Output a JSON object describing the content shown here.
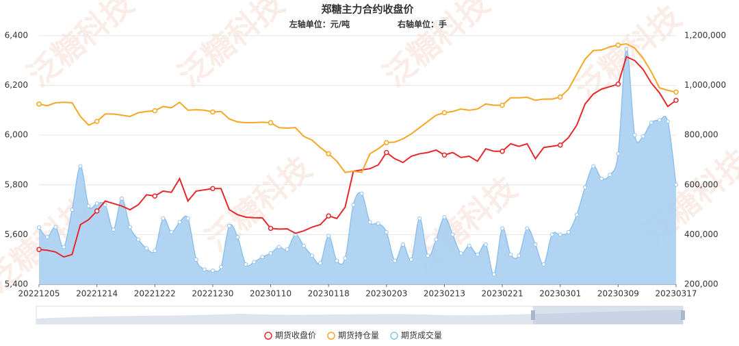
{
  "chart_data": {
    "type": "line",
    "title": "郑糖主力合约收盘价",
    "subtitle_left": "左轴单位：元/吨",
    "subtitle_right": "右轴单位：手",
    "watermark": "泛糖科技",
    "categories": [
      "20221205",
      null,
      null,
      null,
      null,
      null,
      null,
      "20221214",
      null,
      null,
      null,
      null,
      null,
      null,
      "20221222",
      null,
      null,
      null,
      null,
      null,
      null,
      "20221230",
      null,
      null,
      null,
      null,
      null,
      null,
      "20230110",
      null,
      null,
      null,
      null,
      null,
      null,
      "20230118",
      null,
      null,
      null,
      null,
      null,
      null,
      "20230203",
      null,
      null,
      null,
      null,
      null,
      null,
      "20230213",
      null,
      null,
      null,
      null,
      null,
      null,
      "20230221",
      null,
      null,
      null,
      null,
      null,
      null,
      "20230301",
      null,
      null,
      null,
      null,
      null,
      null,
      "20230309",
      null,
      null,
      null,
      null,
      null,
      null,
      "20230317"
    ],
    "ylim": [
      5400,
      6400
    ],
    "yticks": [
      {
        "value": 5400,
        "label": "5,400"
      },
      {
        "value": 5600,
        "label": "5,600"
      },
      {
        "value": 5800,
        "label": "5,800"
      },
      {
        "value": 6000,
        "label": "6,000"
      },
      {
        "value": 6200,
        "label": "6,200"
      },
      {
        "value": 6400,
        "label": "6,400"
      }
    ],
    "y2lim": [
      200000,
      1200000
    ],
    "y2ticks": [
      {
        "value": 200000,
        "label": "200,000"
      },
      {
        "value": 400000,
        "label": "400,000"
      },
      {
        "value": 600000,
        "label": "600,000"
      },
      {
        "value": 800000,
        "label": "800,000"
      },
      {
        "value": 1000000,
        "label": "1,000,000"
      },
      {
        "value": 1200000,
        "label": "1,200,000"
      }
    ],
    "grid": true,
    "legend": "bottom",
    "series": [
      {
        "name": "期货收盘价",
        "color": "#e8262a",
        "values": [
          5540,
          5537,
          5530,
          5510,
          5520,
          5640,
          5660,
          5695,
          5735,
          5725,
          5715,
          5700,
          5720,
          5760,
          5755,
          5775,
          5770,
          5825,
          5735,
          5775,
          5780,
          5785,
          5785,
          5700,
          5680,
          5670,
          5668,
          5667,
          5625,
          5622,
          5623,
          5605,
          5615,
          5630,
          5640,
          5675,
          5665,
          5710,
          5855,
          5860,
          5865,
          5880,
          5930,
          5905,
          5890,
          5915,
          5925,
          5930,
          5940,
          5920,
          5930,
          5910,
          5915,
          5895,
          5945,
          5935,
          5935,
          5965,
          5955,
          5965,
          5905,
          5950,
          5955,
          5960,
          5990,
          6040,
          6125,
          6165,
          6185,
          6195,
          6205,
          6315,
          6300,
          6265,
          6210,
          6170,
          6115,
          6140
        ]
      },
      {
        "name": "期货持仓量",
        "color": "#f5a623",
        "axis": "y2",
        "values": [
          925000,
          918000,
          930000,
          932000,
          930000,
          875000,
          840000,
          855000,
          885000,
          885000,
          880000,
          875000,
          890000,
          895000,
          898000,
          915000,
          910000,
          932000,
          900000,
          902000,
          900000,
          893000,
          895000,
          865000,
          853000,
          850000,
          850000,
          852000,
          850000,
          830000,
          828000,
          830000,
          795000,
          780000,
          750000,
          725000,
          695000,
          650000,
          655000,
          650000,
          725000,
          745000,
          770000,
          772000,
          785000,
          805000,
          830000,
          855000,
          880000,
          890000,
          895000,
          905000,
          900000,
          905000,
          925000,
          920000,
          920000,
          950000,
          950000,
          952000,
          940000,
          945000,
          945000,
          953000,
          985000,
          1045000,
          1105000,
          1140000,
          1142000,
          1155000,
          1162000,
          1167000,
          1150000,
          1110000,
          1055000,
          990000,
          980000,
          973000
        ]
      },
      {
        "name": "期货成交量",
        "color": "#8ec1ec",
        "axis": "y2",
        "area": true,
        "values": [
          428000,
          390000,
          430000,
          350000,
          500000,
          675000,
          515000,
          525000,
          520000,
          420000,
          545000,
          430000,
          380000,
          345000,
          335000,
          465000,
          410000,
          450000,
          465000,
          300000,
          260000,
          255000,
          270000,
          435000,
          390000,
          280000,
          290000,
          310000,
          325000,
          350000,
          340000,
          400000,
          355000,
          315000,
          285000,
          395000,
          295000,
          305000,
          520000,
          565000,
          450000,
          445000,
          410000,
          295000,
          360000,
          300000,
          465000,
          315000,
          380000,
          470000,
          400000,
          325000,
          355000,
          320000,
          360000,
          240000,
          425000,
          320000,
          315000,
          425000,
          360000,
          280000,
          400000,
          400000,
          410000,
          480000,
          590000,
          675000,
          625000,
          640000,
          725000,
          1145000,
          800000,
          795000,
          850000,
          860000,
          855000,
          600000
        ]
      }
    ]
  }
}
